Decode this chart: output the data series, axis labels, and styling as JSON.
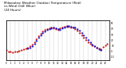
{
  "title": "Milwaukee Weather Outdoor Temperature (Red)\nvs Wind Chill (Blue)\n(24 Hours)",
  "title_fontsize": 3.0,
  "background_color": "#ffffff",
  "plot_bg": "#ffffff",
  "grid_color": "#aaaaaa",
  "xlim": [
    0,
    24
  ],
  "ylim": [
    -15,
    55
  ],
  "temp_color": "#cc0000",
  "chill_color": "#0000cc",
  "temp_x": [
    0,
    0.5,
    1,
    1.5,
    2,
    2.5,
    3,
    3.5,
    4,
    4.5,
    5,
    5.5,
    6,
    6.5,
    7,
    7.5,
    8,
    8.5,
    9,
    9.5,
    10,
    10.5,
    11,
    11.5,
    12,
    12.5,
    13,
    13.5,
    14,
    14.5,
    15,
    15.5,
    16,
    16.5,
    17,
    17.5,
    18,
    18.5,
    19,
    19.5,
    20,
    20.5,
    21,
    21.5,
    22,
    22.5,
    23,
    23.5
  ],
  "temp_y": [
    2,
    0,
    -1,
    -2,
    -1,
    0,
    1,
    2,
    4,
    5,
    7,
    9,
    12,
    16,
    22,
    27,
    32,
    36,
    38,
    40,
    41,
    42,
    41,
    40,
    39,
    41,
    43,
    44,
    45,
    44,
    43,
    42,
    40,
    37,
    33,
    29,
    24,
    20,
    16,
    13,
    11,
    9,
    7,
    5,
    4,
    8,
    11,
    13
  ],
  "chill_x": [
    5,
    5.5,
    6,
    6.5,
    7,
    7.5,
    8,
    8.5,
    9,
    9.5,
    10,
    10.5,
    11,
    11.5,
    12,
    12.5,
    13,
    13.5,
    14,
    14.5,
    15,
    15.5,
    16,
    16.5,
    17,
    17.5,
    18,
    18.5,
    19,
    19.5,
    20,
    20.5,
    21,
    21.5,
    22
  ],
  "chill_y": [
    5,
    7,
    10,
    14,
    19,
    24,
    29,
    33,
    36,
    38,
    40,
    41,
    42,
    41,
    40,
    39,
    41,
    43,
    44,
    45,
    44,
    43,
    42,
    40,
    37,
    33,
    29,
    24,
    20,
    16,
    12,
    9,
    7,
    4,
    3
  ],
  "xtick_positions": [
    0,
    1,
    2,
    3,
    4,
    5,
    6,
    7,
    8,
    9,
    10,
    11,
    12,
    13,
    14,
    15,
    16,
    17,
    18,
    19,
    20,
    21,
    22,
    23
  ],
  "ytick_right": [
    -10,
    0,
    10,
    20,
    30,
    40,
    50
  ],
  "marker_size": 1.2,
  "figwidth": 1.6,
  "figheight": 0.87,
  "dpi": 100
}
